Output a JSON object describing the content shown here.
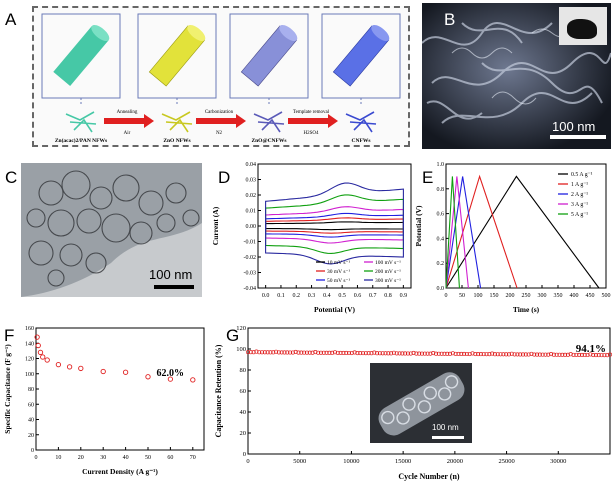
{
  "panels": {
    "a": "A",
    "b": "B",
    "c": "C",
    "d": "D",
    "e": "E",
    "f": "F",
    "g": "G"
  },
  "schematic": {
    "stages": [
      "Zn(acac)2/PAN NFWs",
      "ZnO NFWs",
      "ZnO@CNFWs",
      "CNFWs"
    ],
    "steps": [
      {
        "top": "Annealing",
        "bottom": "Air"
      },
      {
        "top": "Carbonization",
        "bottom": "N2"
      },
      {
        "top": "Template removal",
        "bottom": "H2SO4"
      }
    ],
    "colors": {
      "stage1": "#46c8a6",
      "stage2": "#e2e23a",
      "stage3": "#8890d8",
      "stage4": "#5a70e6",
      "arrow": "#e02020"
    }
  },
  "sem": {
    "scalebar": "100 nm"
  },
  "tem": {
    "scalebar": "100 nm"
  },
  "inset_g": {
    "scalebar": "100 nm"
  },
  "chart_data": [
    {
      "id": "D",
      "type": "line",
      "xlabel": "Potential (V)",
      "ylabel": "Current (A)",
      "xlim": [
        -0.05,
        0.95
      ],
      "ylim": [
        -0.04,
        0.04
      ],
      "xticks": [
        "0.0",
        "0.1",
        "0.2",
        "0.3",
        "0.4",
        "0.5",
        "0.6",
        "0.7",
        "0.8",
        "0.9"
      ],
      "yticks": [
        "0.04",
        "0.03",
        "0.02",
        "0.01",
        "0.00",
        "-0.01",
        "-0.02",
        "-0.03",
        "-0.04"
      ],
      "legend_position": "lower-right",
      "series": [
        {
          "name": "10 mV s⁻¹",
          "color": "#000000",
          "amplitude": 0.0028
        },
        {
          "name": "30 mV s⁻¹",
          "color": "#e02020",
          "amplitude": 0.0055
        },
        {
          "name": "50 mV s⁻¹",
          "color": "#2020e0",
          "amplitude": 0.0085
        },
        {
          "name": "100 mV s⁻¹",
          "color": "#d020d0",
          "amplitude": 0.013
        },
        {
          "name": "200 mV s⁻¹",
          "color": "#10a010",
          "amplitude": 0.021
        },
        {
          "name": "300 mV s⁻¹",
          "color": "#2a2aa0",
          "amplitude": 0.029
        }
      ]
    },
    {
      "id": "E",
      "type": "line",
      "xlabel": "Time (s)",
      "ylabel": "Potential (V)",
      "xlim": [
        0,
        500
      ],
      "ylim": [
        0,
        1.0
      ],
      "xticks": [
        "0",
        "50",
        "100",
        "150",
        "200",
        "250",
        "300",
        "350",
        "400",
        "450",
        "500"
      ],
      "yticks": [
        "0.0",
        "0.2",
        "0.4",
        "0.6",
        "0.8",
        "1.0"
      ],
      "legend_position": "top-right",
      "series": [
        {
          "name": "0.5 A g⁻¹",
          "color": "#000000",
          "charge_end": 220,
          "discharge_end": 478
        },
        {
          "name": "1 A g⁻¹",
          "color": "#e02020",
          "charge_end": 105,
          "discharge_end": 222
        },
        {
          "name": "2 A g⁻¹",
          "color": "#2020e0",
          "charge_end": 52,
          "discharge_end": 108
        },
        {
          "name": "3 A g⁻¹",
          "color": "#d020d0",
          "charge_end": 34,
          "discharge_end": 70
        },
        {
          "name": "5 A g⁻¹",
          "color": "#10a010",
          "charge_end": 20,
          "discharge_end": 42
        }
      ]
    },
    {
      "id": "F",
      "type": "scatter",
      "xlabel": "Current Density (A g⁻¹)",
      "ylabel": "Specific Capacitance (F g⁻¹)",
      "xlim": [
        0,
        75
      ],
      "ylim": [
        0,
        160
      ],
      "xticks": [
        "0",
        "10",
        "20",
        "30",
        "40",
        "50",
        "60",
        "70"
      ],
      "yticks": [
        "0",
        "20",
        "40",
        "60",
        "80",
        "100",
        "120",
        "140",
        "160"
      ],
      "annotation": "62.0%",
      "color": "#e02020",
      "x": [
        0.5,
        1,
        2,
        3,
        5,
        10,
        15,
        20,
        30,
        40,
        50,
        60,
        70
      ],
      "y": [
        148,
        137,
        128,
        122,
        118,
        112,
        109,
        107,
        103,
        102,
        96,
        93,
        92
      ]
    },
    {
      "id": "G",
      "type": "scatter",
      "xlabel": "Cycle Number (n)",
      "ylabel": "Capacitance Retention (%)",
      "xlim": [
        0,
        35000
      ],
      "ylim": [
        0,
        120
      ],
      "xticks": [
        "0",
        "5000",
        "10000",
        "15000",
        "20000",
        "25000",
        "30000"
      ],
      "yticks": [
        "0",
        "20",
        "40",
        "60",
        "80",
        "100",
        "120"
      ],
      "annotation": "94.1%",
      "color": "#e02020",
      "x_start": 0,
      "x_end": 35000,
      "n_points": 130,
      "y_start": 97,
      "y_end": 94.1
    }
  ]
}
